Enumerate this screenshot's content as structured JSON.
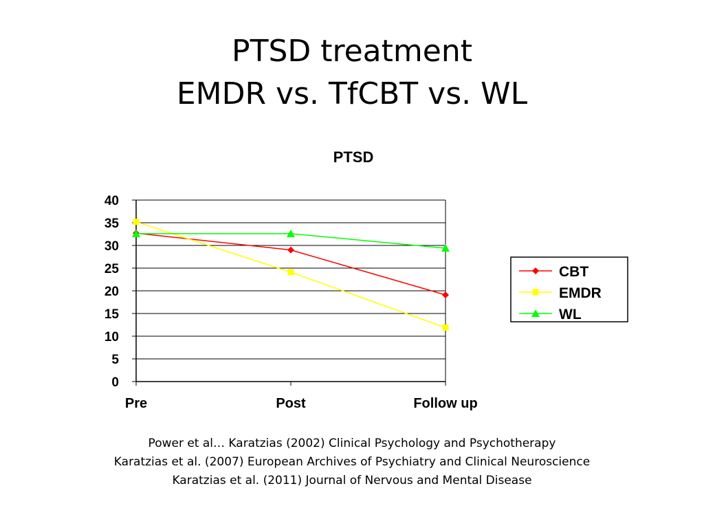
{
  "slide": {
    "title_line1": "PTSD treatment",
    "title_line2": "EMDR vs. TfCBT vs. WL"
  },
  "chart_data": {
    "type": "line",
    "title": "PTSD",
    "xlabel": "",
    "ylabel": "",
    "categories": [
      "Pre",
      "Post",
      "Follow up"
    ],
    "ylim": [
      0,
      40
    ],
    "yticks": [
      0,
      5,
      10,
      15,
      20,
      25,
      30,
      35,
      40
    ],
    "grid": true,
    "legend_position": "right",
    "series": [
      {
        "name": "CBT",
        "values": [
          32.7,
          29.0,
          19.1
        ],
        "color": "#ff0000",
        "marker": "diamond"
      },
      {
        "name": "EMDR",
        "values": [
          35.2,
          24.1,
          11.9
        ],
        "color": "#ffff00",
        "marker": "square"
      },
      {
        "name": "WL",
        "values": [
          32.6,
          32.6,
          29.4
        ],
        "color": "#00ff00",
        "marker": "triangle"
      }
    ]
  },
  "references": [
    "Power et al… Karatzias (2002) Clinical Psychology and Psychotherapy",
    "Karatzias et al. (2007) European Archives of Psychiatry and Clinical Neuroscience",
    "Karatzias et al. (2011) Journal of Nervous and Mental Disease"
  ]
}
